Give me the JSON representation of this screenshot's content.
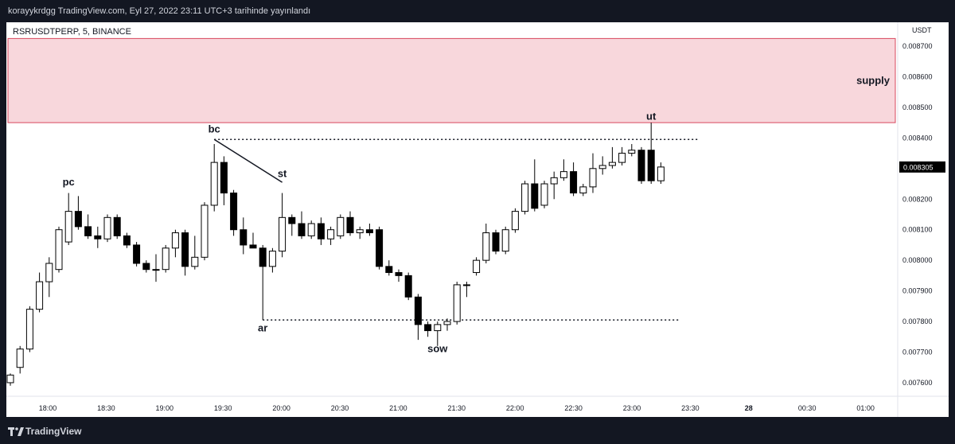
{
  "header": {
    "caption": "korayykrdgg TradingView.com, Eyl 27, 2022 23:11 UTC+3 tarihinde yayınlandı"
  },
  "footer": {
    "brand": "TradingView",
    "logo_icon": "tradingview-logo-icon"
  },
  "chart_data": {
    "type": "candlestick",
    "symbol_label": "RSRUSDTPERP, 5, BINANCE",
    "currency": "USDT",
    "last_price": "0.008305",
    "colors": {
      "up_body": "#ffffff",
      "down_body": "#000000",
      "wick": "#000000",
      "supply_fill": "#f8d7dc",
      "supply_border": "#d9485f",
      "price_tag": "#000000"
    },
    "y_ticks": [
      "0.008700",
      "0.008600",
      "0.008500",
      "0.008400",
      "0.008300",
      "0.008200",
      "0.008100",
      "0.008000",
      "0.007900",
      "0.007800",
      "0.007700",
      "0.007600"
    ],
    "x_ticks": [
      "18:00",
      "18:30",
      "19:00",
      "19:30",
      "20:00",
      "20:30",
      "21:00",
      "21:30",
      "22:00",
      "22:30",
      "23:00",
      "23:30",
      "28",
      "00:30",
      "01:00"
    ],
    "supply_zone": {
      "label": "supply",
      "from_price": 0.00845,
      "to_price": 0.008725
    },
    "levels": [
      {
        "price": 0.008395,
        "from_index": 21,
        "to_index": 71
      },
      {
        "price": 0.007805,
        "from_index": 26,
        "to_index": 69
      }
    ],
    "annotations": [
      {
        "text": "pc",
        "index": 6,
        "price": 0.008245
      },
      {
        "text": "bc",
        "index": 21,
        "price": 0.008418
      },
      {
        "text": "st",
        "index": 28,
        "price": 0.008272
      },
      {
        "text": "ar",
        "index": 26,
        "price": 0.007767
      },
      {
        "text": "sow",
        "index": 44,
        "price": 0.0077
      },
      {
        "text": "ut",
        "index": 66,
        "price": 0.00846
      }
    ],
    "trend_line": {
      "from_index": 21,
      "from_price": 0.008395,
      "to_index": 28,
      "to_price": 0.008255
    },
    "candles": [
      {
        "o": 0.0076,
        "h": 0.00763,
        "l": 0.00759,
        "c": 0.007625
      },
      {
        "o": 0.00765,
        "h": 0.00772,
        "l": 0.00763,
        "c": 0.00771
      },
      {
        "o": 0.00771,
        "h": 0.00785,
        "l": 0.0077,
        "c": 0.00784
      },
      {
        "o": 0.00784,
        "h": 0.00796,
        "l": 0.00783,
        "c": 0.00793
      },
      {
        "o": 0.00793,
        "h": 0.00801,
        "l": 0.00788,
        "c": 0.00799
      },
      {
        "o": 0.00797,
        "h": 0.00811,
        "l": 0.00796,
        "c": 0.0081
      },
      {
        "o": 0.00806,
        "h": 0.00822,
        "l": 0.00805,
        "c": 0.00816
      },
      {
        "o": 0.00816,
        "h": 0.00821,
        "l": 0.0081,
        "c": 0.00811
      },
      {
        "o": 0.00811,
        "h": 0.00815,
        "l": 0.00807,
        "c": 0.00808
      },
      {
        "o": 0.00808,
        "h": 0.00811,
        "l": 0.00804,
        "c": 0.00807
      },
      {
        "o": 0.00807,
        "h": 0.00815,
        "l": 0.00806,
        "c": 0.00814
      },
      {
        "o": 0.00814,
        "h": 0.00815,
        "l": 0.00807,
        "c": 0.00808
      },
      {
        "o": 0.00808,
        "h": 0.00809,
        "l": 0.00804,
        "c": 0.00805
      },
      {
        "o": 0.00805,
        "h": 0.00806,
        "l": 0.00798,
        "c": 0.00799
      },
      {
        "o": 0.00799,
        "h": 0.008,
        "l": 0.00796,
        "c": 0.00797
      },
      {
        "o": 0.00797,
        "h": 0.00802,
        "l": 0.00793,
        "c": 0.00797
      },
      {
        "o": 0.00797,
        "h": 0.00805,
        "l": 0.00796,
        "c": 0.00804
      },
      {
        "o": 0.00804,
        "h": 0.0081,
        "l": 0.00801,
        "c": 0.00809
      },
      {
        "o": 0.00809,
        "h": 0.0081,
        "l": 0.00795,
        "c": 0.00798
      },
      {
        "o": 0.00798,
        "h": 0.00808,
        "l": 0.00797,
        "c": 0.00801
      },
      {
        "o": 0.00801,
        "h": 0.00819,
        "l": 0.008,
        "c": 0.00818
      },
      {
        "o": 0.00818,
        "h": 0.00838,
        "l": 0.00816,
        "c": 0.00832
      },
      {
        "o": 0.00832,
        "h": 0.00834,
        "l": 0.00818,
        "c": 0.00822
      },
      {
        "o": 0.00822,
        "h": 0.00823,
        "l": 0.00808,
        "c": 0.0081
      },
      {
        "o": 0.0081,
        "h": 0.00814,
        "l": 0.00802,
        "c": 0.00805
      },
      {
        "o": 0.00805,
        "h": 0.00809,
        "l": 0.00804,
        "c": 0.00804
      },
      {
        "o": 0.00804,
        "h": 0.00805,
        "l": 0.007805,
        "c": 0.00798
      },
      {
        "o": 0.00798,
        "h": 0.00804,
        "l": 0.00796,
        "c": 0.00803
      },
      {
        "o": 0.00803,
        "h": 0.00822,
        "l": 0.00801,
        "c": 0.00814
      },
      {
        "o": 0.00814,
        "h": 0.00815,
        "l": 0.00808,
        "c": 0.00812
      },
      {
        "o": 0.00812,
        "h": 0.00816,
        "l": 0.00807,
        "c": 0.00808
      },
      {
        "o": 0.00808,
        "h": 0.00813,
        "l": 0.00807,
        "c": 0.00812
      },
      {
        "o": 0.00812,
        "h": 0.00814,
        "l": 0.00805,
        "c": 0.00807
      },
      {
        "o": 0.00807,
        "h": 0.00811,
        "l": 0.00805,
        "c": 0.0081
      },
      {
        "o": 0.00808,
        "h": 0.00815,
        "l": 0.00807,
        "c": 0.00814
      },
      {
        "o": 0.00814,
        "h": 0.00816,
        "l": 0.00808,
        "c": 0.00809
      },
      {
        "o": 0.00809,
        "h": 0.00811,
        "l": 0.00807,
        "c": 0.0081
      },
      {
        "o": 0.0081,
        "h": 0.00812,
        "l": 0.00808,
        "c": 0.00809
      },
      {
        "o": 0.0081,
        "h": 0.00811,
        "l": 0.00797,
        "c": 0.00798
      },
      {
        "o": 0.00798,
        "h": 0.008,
        "l": 0.00795,
        "c": 0.00796
      },
      {
        "o": 0.00796,
        "h": 0.00797,
        "l": 0.00793,
        "c": 0.00795
      },
      {
        "o": 0.00795,
        "h": 0.00796,
        "l": 0.00787,
        "c": 0.00788
      },
      {
        "o": 0.00788,
        "h": 0.00789,
        "l": 0.00774,
        "c": 0.00779
      },
      {
        "o": 0.00779,
        "h": 0.0078,
        "l": 0.00775,
        "c": 0.00777
      },
      {
        "o": 0.00777,
        "h": 0.0078,
        "l": 0.00772,
        "c": 0.00779
      },
      {
        "o": 0.00779,
        "h": 0.00781,
        "l": 0.00777,
        "c": 0.0078
      },
      {
        "o": 0.0078,
        "h": 0.00793,
        "l": 0.00779,
        "c": 0.00792
      },
      {
        "o": 0.00792,
        "h": 0.00793,
        "l": 0.00788,
        "c": 0.00792
      },
      {
        "o": 0.00796,
        "h": 0.00801,
        "l": 0.00795,
        "c": 0.008
      },
      {
        "o": 0.008,
        "h": 0.00812,
        "l": 0.00799,
        "c": 0.00809
      },
      {
        "o": 0.00809,
        "h": 0.0081,
        "l": 0.00802,
        "c": 0.00803
      },
      {
        "o": 0.00803,
        "h": 0.00811,
        "l": 0.00802,
        "c": 0.0081
      },
      {
        "o": 0.0081,
        "h": 0.00817,
        "l": 0.00809,
        "c": 0.00816
      },
      {
        "o": 0.00816,
        "h": 0.00826,
        "l": 0.00815,
        "c": 0.00825
      },
      {
        "o": 0.00825,
        "h": 0.00833,
        "l": 0.00816,
        "c": 0.00817
      },
      {
        "o": 0.00818,
        "h": 0.00826,
        "l": 0.00817,
        "c": 0.00825
      },
      {
        "o": 0.00825,
        "h": 0.00829,
        "l": 0.0082,
        "c": 0.00827
      },
      {
        "o": 0.00827,
        "h": 0.00833,
        "l": 0.00826,
        "c": 0.00829
      },
      {
        "o": 0.00829,
        "h": 0.00832,
        "l": 0.00821,
        "c": 0.00822
      },
      {
        "o": 0.00822,
        "h": 0.00825,
        "l": 0.00821,
        "c": 0.00824
      },
      {
        "o": 0.00824,
        "h": 0.00835,
        "l": 0.00822,
        "c": 0.0083
      },
      {
        "o": 0.0083,
        "h": 0.00834,
        "l": 0.00828,
        "c": 0.00831
      },
      {
        "o": 0.00831,
        "h": 0.00837,
        "l": 0.0083,
        "c": 0.00832
      },
      {
        "o": 0.00832,
        "h": 0.00837,
        "l": 0.00831,
        "c": 0.00835
      },
      {
        "o": 0.00835,
        "h": 0.00838,
        "l": 0.00834,
        "c": 0.00836
      },
      {
        "o": 0.00836,
        "h": 0.00837,
        "l": 0.00825,
        "c": 0.00826
      },
      {
        "o": 0.00836,
        "h": 0.00845,
        "l": 0.00825,
        "c": 0.00826
      },
      {
        "o": 0.00826,
        "h": 0.00832,
        "l": 0.00825,
        "c": 0.008305
      }
    ]
  }
}
